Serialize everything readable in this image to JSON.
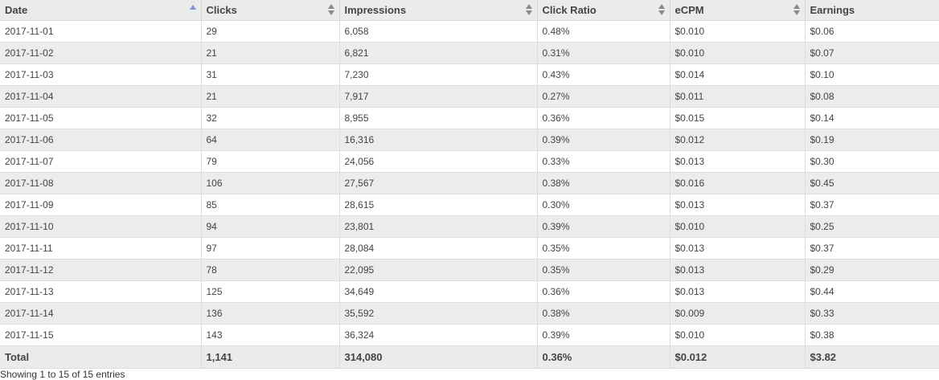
{
  "table": {
    "columns": [
      "Date",
      "Clicks",
      "Impressions",
      "Click Ratio",
      "eCPM",
      "Earnings"
    ],
    "sort": {
      "column": "Date",
      "direction": "ascending"
    },
    "rows": [
      [
        "2017-11-01",
        "29",
        "6,058",
        "0.48%",
        "$0.010",
        "$0.06"
      ],
      [
        "2017-11-02",
        "21",
        "6,821",
        "0.31%",
        "$0.010",
        "$0.07"
      ],
      [
        "2017-11-03",
        "31",
        "7,230",
        "0.43%",
        "$0.014",
        "$0.10"
      ],
      [
        "2017-11-04",
        "21",
        "7,917",
        "0.27%",
        "$0.011",
        "$0.08"
      ],
      [
        "2017-11-05",
        "32",
        "8,955",
        "0.36%",
        "$0.015",
        "$0.14"
      ],
      [
        "2017-11-06",
        "64",
        "16,316",
        "0.39%",
        "$0.012",
        "$0.19"
      ],
      [
        "2017-11-07",
        "79",
        "24,056",
        "0.33%",
        "$0.013",
        "$0.30"
      ],
      [
        "2017-11-08",
        "106",
        "27,567",
        "0.38%",
        "$0.016",
        "$0.45"
      ],
      [
        "2017-11-09",
        "85",
        "28,615",
        "0.30%",
        "$0.013",
        "$0.37"
      ],
      [
        "2017-11-10",
        "94",
        "23,801",
        "0.39%",
        "$0.010",
        "$0.25"
      ],
      [
        "2017-11-11",
        "97",
        "28,084",
        "0.35%",
        "$0.013",
        "$0.37"
      ],
      [
        "2017-11-12",
        "78",
        "22,095",
        "0.35%",
        "$0.013",
        "$0.29"
      ],
      [
        "2017-11-13",
        "125",
        "34,649",
        "0.36%",
        "$0.013",
        "$0.44"
      ],
      [
        "2017-11-14",
        "136",
        "35,592",
        "0.38%",
        "$0.009",
        "$0.33"
      ],
      [
        "2017-11-15",
        "143",
        "36,324",
        "0.39%",
        "$0.010",
        "$0.38"
      ]
    ],
    "footer": [
      "Total",
      "1,141",
      "314,080",
      "0.36%",
      "$0.012",
      "$3.82"
    ]
  },
  "info_text": "Showing 1 to 15 of 15 entries",
  "colors": {
    "sort_active": "#7d94d8",
    "sort_inactive": "#8a8a8a",
    "header_bg": "#ebebeb",
    "row_alt_bg": "#ececec"
  },
  "icons": {
    "sorted": "sort-ascending-icon",
    "unsorted": "sort-both-icon"
  }
}
